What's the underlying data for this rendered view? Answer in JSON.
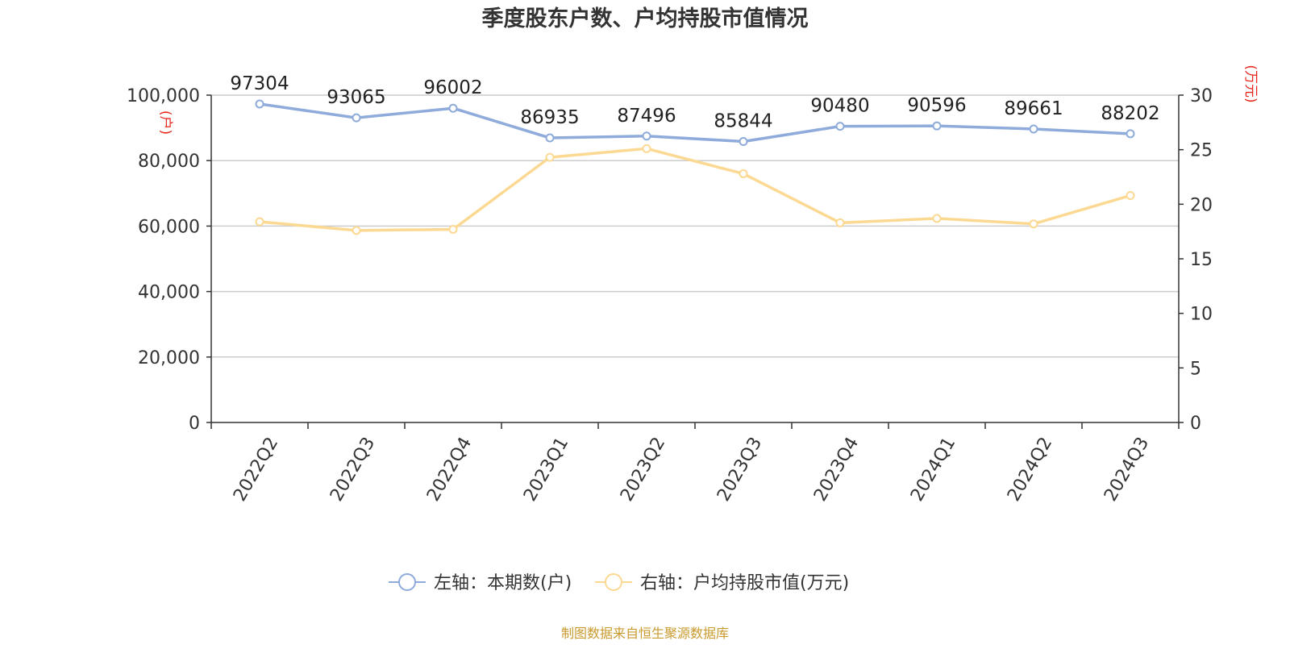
{
  "chart_data": {
    "type": "line",
    "title": "季度股东户数、户均持股市值情况",
    "categories": [
      "2022Q2",
      "2022Q3",
      "2022Q4",
      "2023Q1",
      "2023Q2",
      "2023Q3",
      "2023Q4",
      "2024Q1",
      "2024Q2",
      "2024Q3"
    ],
    "left_axis": {
      "unit": "(户)",
      "min": 0,
      "max": 100000,
      "ticks": [
        "0",
        "20,000",
        "40,000",
        "60,000",
        "80,000",
        "100,000"
      ]
    },
    "right_axis": {
      "unit": "(万元)",
      "min": 0,
      "max": 30,
      "ticks": [
        "0",
        "5",
        "10",
        "15",
        "20",
        "25",
        "30"
      ]
    },
    "series": [
      {
        "name": "左轴：本期数(户)",
        "axis": "left",
        "color": "#8eabdb",
        "values": [
          97304,
          93065,
          96002,
          86935,
          87496,
          85844,
          90480,
          90596,
          89661,
          88202
        ],
        "labels": [
          "97304",
          "93065",
          "96002",
          "86935",
          "87496",
          "85844",
          "90480",
          "90596",
          "89661",
          "88202"
        ]
      },
      {
        "name": "右轴：户均持股市值(万元)",
        "axis": "right",
        "color": "#fcd993",
        "values": [
          18.4,
          17.6,
          17.7,
          24.3,
          25.1,
          22.8,
          18.3,
          18.7,
          18.2,
          20.8
        ]
      }
    ],
    "grid": true,
    "legend_position": "bottom-center"
  },
  "source": "制图数据来自恒生聚源数据库",
  "colors": {
    "unit_red": "#e8261c",
    "source_gold": "#c99a2e",
    "grid": "#cccccc",
    "axis": "#333333"
  }
}
